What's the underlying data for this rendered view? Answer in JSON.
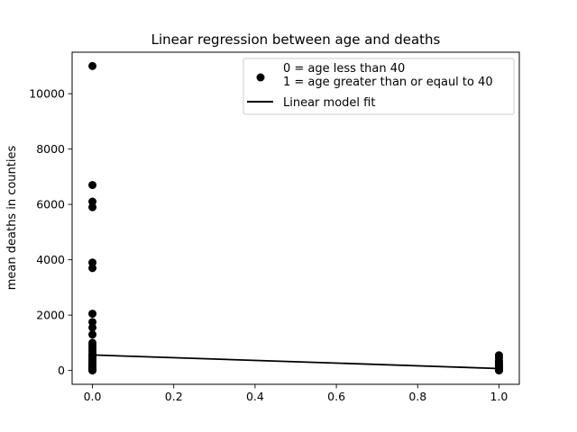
{
  "chart_data": {
    "type": "scatter",
    "title": "Linear regression between age and deaths",
    "xlabel": "",
    "ylabel": "mean deaths in counties",
    "xlim": [
      -0.05,
      1.05
    ],
    "ylim": [
      -500,
      11500
    ],
    "x_ticks": [
      0.0,
      0.2,
      0.4,
      0.6,
      0.8,
      1.0
    ],
    "x_tick_labels": [
      "0.0",
      "0.2",
      "0.4",
      "0.6",
      "0.8",
      "1.0"
    ],
    "y_ticks": [
      0,
      2000,
      4000,
      6000,
      8000,
      10000
    ],
    "y_tick_labels": [
      "0",
      "2000",
      "4000",
      "6000",
      "8000",
      "10000"
    ],
    "grid": false,
    "legend_position": "top-right",
    "legend": [
      {
        "label": "0 = age less than 40\n1 = age greater than or eqaul to 40",
        "marker": "dot"
      },
      {
        "label": "Linear model fit",
        "marker": "line"
      }
    ],
    "series": [
      {
        "name": "0 = age less than 40\n1 = age greater than or eqaul to 40",
        "kind": "points",
        "color": "#000000",
        "x": [
          0,
          0,
          0,
          0,
          0,
          0,
          0,
          0,
          0,
          0,
          0,
          0,
          0,
          0,
          0,
          0,
          0,
          0,
          0,
          0,
          0,
          0,
          0,
          0,
          0,
          0,
          0,
          0,
          0,
          0,
          0,
          0,
          0,
          0,
          1,
          1,
          1,
          1,
          1,
          1,
          1,
          1,
          1,
          1,
          1,
          1,
          1,
          1,
          1,
          1,
          1
        ],
        "y": [
          11000,
          6700,
          6100,
          5900,
          3900,
          3700,
          2050,
          1750,
          1550,
          1300,
          1000,
          900,
          800,
          700,
          600,
          550,
          500,
          450,
          400,
          350,
          300,
          250,
          200,
          180,
          150,
          120,
          100,
          80,
          60,
          40,
          30,
          20,
          10,
          0,
          550,
          450,
          350,
          300,
          250,
          200,
          180,
          150,
          120,
          100,
          80,
          60,
          40,
          30,
          20,
          10,
          0
        ]
      },
      {
        "name": "Linear model fit",
        "kind": "line",
        "color": "#000000",
        "x": [
          0,
          1
        ],
        "y": [
          560,
          70
        ]
      }
    ]
  }
}
